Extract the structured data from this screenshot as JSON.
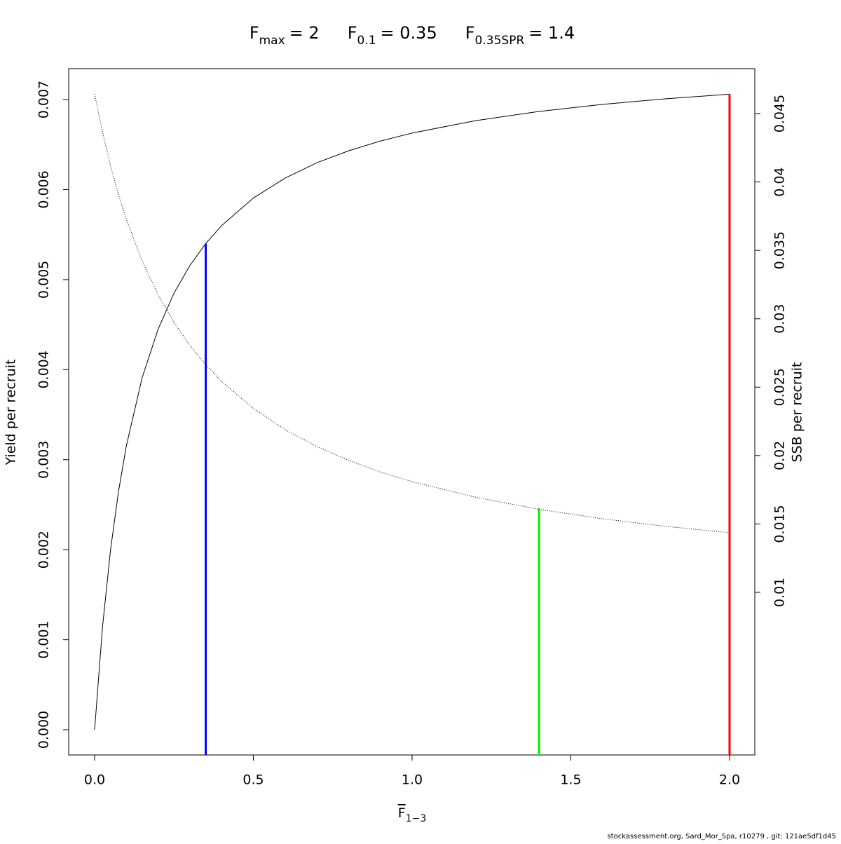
{
  "chart_data": {
    "type": "line",
    "title_parts": [
      {
        "main": "F",
        "sub": "max",
        "value": "= 2"
      },
      {
        "main": "F",
        "sub": "0.1",
        "value": "= 0.35"
      },
      {
        "main": "F",
        "sub": "0.35SPR",
        "value": "= 1.4"
      }
    ],
    "xlabel": {
      "main": "F",
      "sub": "1−3"
    },
    "ylabel": "Yield per recruit",
    "y2label": "SSB per recruit",
    "footer": "stockassessment.org, Sard_Mor_Spa, r10279 , git: 121ae5df1d45",
    "x": [
      0,
      0.025,
      0.05,
      0.075,
      0.1,
      0.15,
      0.2,
      0.25,
      0.3,
      0.35,
      0.4,
      0.5,
      0.6,
      0.7,
      0.8,
      0.9,
      1.0,
      1.2,
      1.4,
      1.6,
      1.8,
      2.0
    ],
    "series": [
      {
        "color": "#000000",
        "dash": "solid",
        "values": [
          0,
          0.001148,
          0.001994,
          0.002642,
          0.003155,
          0.003914,
          0.00445,
          0.004849,
          0.005156,
          0.005401,
          0.0056,
          0.005906,
          0.006128,
          0.006298,
          0.006431,
          0.006539,
          0.006628,
          0.006766,
          0.006868,
          0.006947,
          0.007009,
          0.00706
        ]
      },
      {
        "color": "#000000",
        "dash": "dotted",
        "axis": "y2",
        "values": [
          0.04643,
          0.04362,
          0.0412,
          0.0391,
          0.03727,
          0.0342,
          0.03175,
          0.02974,
          0.02806,
          0.02664,
          0.02542,
          0.02344,
          0.02189,
          0.02066,
          0.01965,
          0.0188,
          0.01809,
          0.01695,
          0.01607,
          0.01538,
          0.01482,
          0.01436
        ]
      }
    ],
    "reference_lines": [
      {
        "x": 0.35,
        "y": 0.0054,
        "axis": "y",
        "color": "#0000ff"
      },
      {
        "x": 1.4,
        "y": 0.01615,
        "axis": "y2",
        "color": "#00ee00"
      },
      {
        "x": 2.0,
        "y": 0.00706,
        "axis": "y",
        "color": "#ff0000"
      }
    ],
    "xlim": [
      -0.0817,
      2.0795
    ],
    "xticks": [
      {
        "value": 0,
        "label": "0.0"
      },
      {
        "value": 0.5,
        "label": "0.5"
      },
      {
        "value": 1,
        "label": "1.0"
      },
      {
        "value": 1.5,
        "label": "1.5"
      },
      {
        "value": 2,
        "label": "2.0"
      }
    ],
    "ylim": [
      -0.00028,
      0.007343
    ],
    "yticks": [
      {
        "value": 0,
        "label": "0.000"
      },
      {
        "value": 0.001,
        "label": "0.001"
      },
      {
        "value": 0.002,
        "label": "0.002"
      },
      {
        "value": 0.003,
        "label": "0.003"
      },
      {
        "value": 0.004,
        "label": "0.004"
      },
      {
        "value": 0.005,
        "label": "0.005"
      },
      {
        "value": 0.006,
        "label": "0.006"
      },
      {
        "value": 0.007,
        "label": "0.007"
      }
    ],
    "y2lim": [
      -0.00189,
      0.04828
    ],
    "y2ticks": [
      0.01,
      0.015,
      0.02,
      0.025,
      0.03,
      0.035,
      0.04,
      0.045
    ]
  }
}
